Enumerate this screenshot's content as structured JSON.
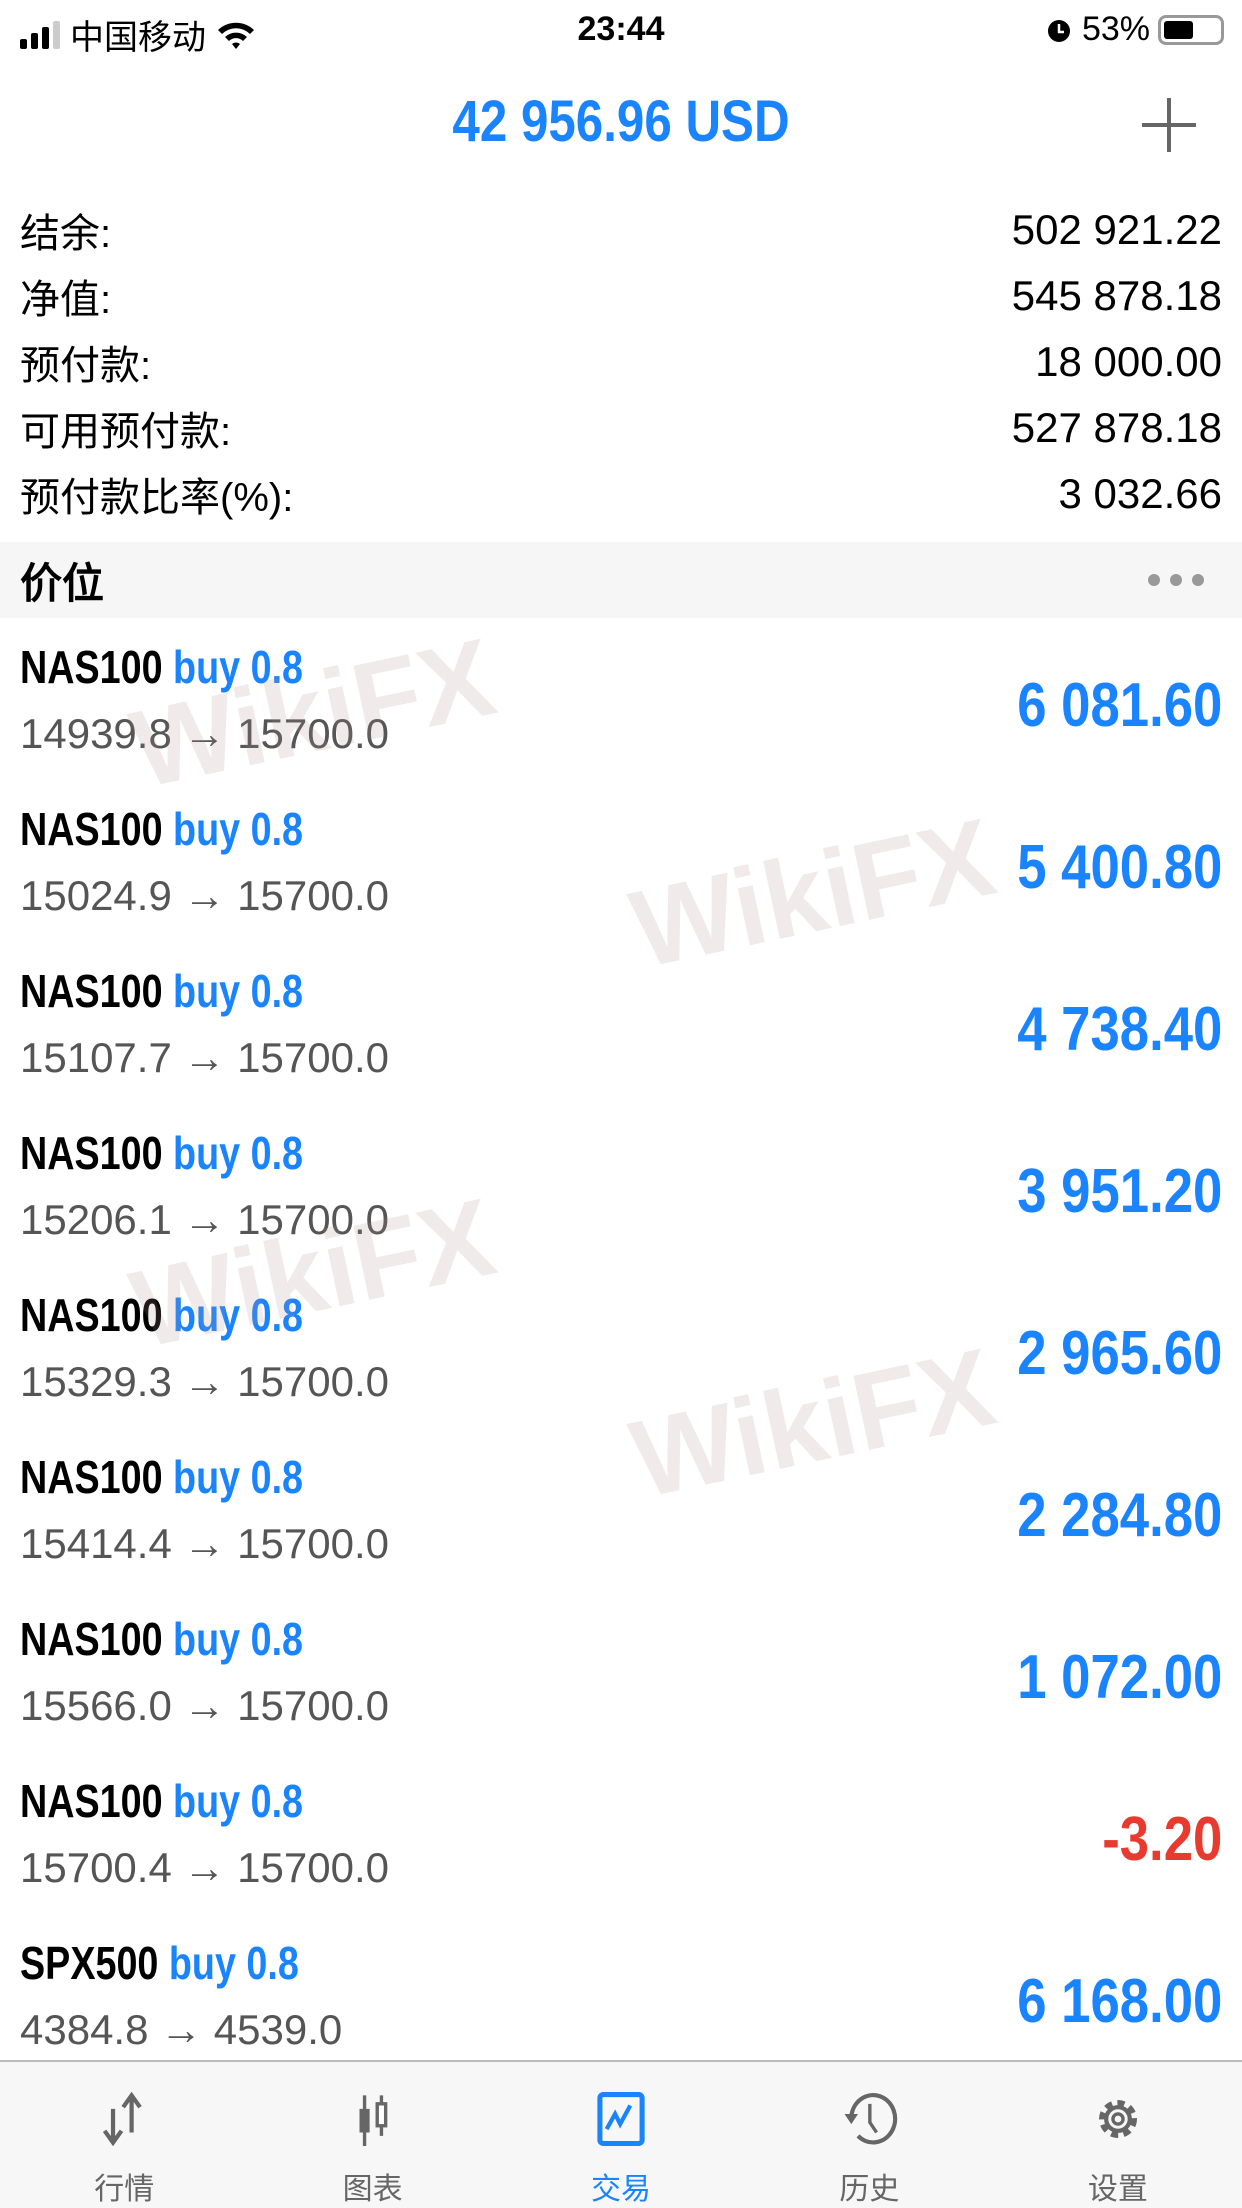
{
  "status": {
    "carrier": "中国移动",
    "time": "23:44",
    "battery": "53%",
    "battery_level": 0.53
  },
  "header": {
    "title": "42 956.96 USD"
  },
  "summary": [
    {
      "label": "结余:",
      "value": "502 921.22"
    },
    {
      "label": "净值:",
      "value": "545 878.18"
    },
    {
      "label": "预付款:",
      "value": "18 000.00"
    },
    {
      "label": "可用预付款:",
      "value": "527 878.18"
    },
    {
      "label": "预付款比率(%):",
      "value": "3 032.66"
    }
  ],
  "section": {
    "title": "价位"
  },
  "positions": [
    {
      "symbol": "NAS100",
      "side": "buy 0.8",
      "prices": "14939.8 → 15700.0",
      "profit": "6 081.60"
    },
    {
      "symbol": "NAS100",
      "side": "buy 0.8",
      "prices": "15024.9 → 15700.0",
      "profit": "5 400.80"
    },
    {
      "symbol": "NAS100",
      "side": "buy 0.8",
      "prices": "15107.7 → 15700.0",
      "profit": "4 738.40"
    },
    {
      "symbol": "NAS100",
      "side": "buy 0.8",
      "prices": "15206.1 → 15700.0",
      "profit": "3 951.20"
    },
    {
      "symbol": "NAS100",
      "side": "buy 0.8",
      "prices": "15329.3 → 15700.0",
      "profit": "2 965.60"
    },
    {
      "symbol": "NAS100",
      "side": "buy 0.8",
      "prices": "15414.4 → 15700.0",
      "profit": "2 284.80"
    },
    {
      "symbol": "NAS100",
      "side": "buy 0.8",
      "prices": "15566.0 → 15700.0",
      "profit": "1 072.00"
    },
    {
      "symbol": "NAS100",
      "side": "buy 0.8",
      "prices": "15700.4 → 15700.0",
      "profit": "-3.20"
    },
    {
      "symbol": "SPX500",
      "side": "buy 0.8",
      "prices": "4384.8 → 4539.0",
      "profit": "6 168.00"
    }
  ],
  "watermark": "WikiFX",
  "tabs": [
    {
      "label": "行情",
      "icon": "quotes-icon"
    },
    {
      "label": "图表",
      "icon": "chart-icon"
    },
    {
      "label": "交易",
      "icon": "trade-icon",
      "active": true
    },
    {
      "label": "历史",
      "icon": "history-icon"
    },
    {
      "label": "设置",
      "icon": "settings-icon"
    }
  ],
  "colors": {
    "accent": "#1a84ff",
    "negative": "#e63b2e"
  }
}
